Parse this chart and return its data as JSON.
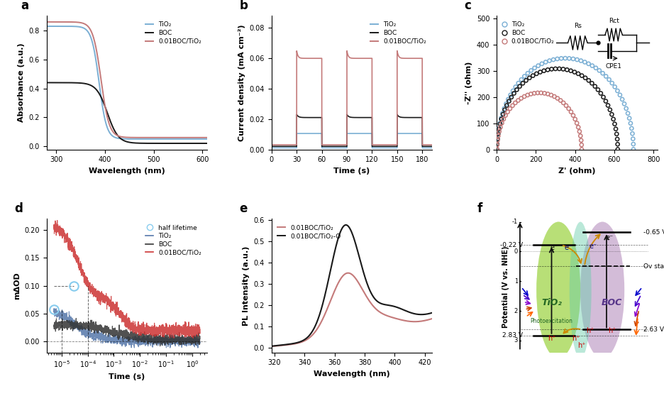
{
  "panel_a": {
    "label": "a",
    "xlabel": "Wavelength (nm)",
    "ylabel": "Absorbance (a.u.)",
    "xlim": [
      280,
      610
    ],
    "xticks": [
      300,
      400,
      500,
      600
    ],
    "colors": {
      "TiO2": "#7bafd4",
      "BOC": "#1a1a1a",
      "comp": "#c47a7a"
    },
    "legend": [
      "TiO₂",
      "BOC",
      "0.01BOC/TiO₂"
    ]
  },
  "panel_b": {
    "label": "b",
    "xlabel": "Time (s)",
    "ylabel": "Current density (mA cm⁻²)",
    "xlim": [
      0,
      192
    ],
    "ylim": [
      0,
      0.088
    ],
    "yticks": [
      0.0,
      0.02,
      0.04,
      0.06,
      0.08
    ],
    "xticks": [
      0,
      30,
      60,
      90,
      120,
      150,
      180
    ],
    "colors": {
      "TiO2": "#7bafd4",
      "BOC": "#1a1a1a",
      "comp": "#c47a7a"
    },
    "legend": [
      "TiO₂",
      "BOC",
      "0.01BOC/TiO₂"
    ]
  },
  "panel_c": {
    "label": "c",
    "xlabel": "Z' (ohm)",
    "ylabel": "-Z'' (ohm)",
    "xlim": [
      0,
      820
    ],
    "ylim": [
      0,
      510
    ],
    "xticks": [
      0,
      200,
      400,
      600,
      800
    ],
    "yticks": [
      0,
      100,
      200,
      300,
      400,
      500
    ],
    "colors": {
      "TiO2": "#7bafd4",
      "BOC": "#1a1a1a",
      "comp": "#c47a7a"
    },
    "legend": [
      "TiO₂",
      "BOC",
      "0.01BOC/TiO₂"
    ]
  },
  "panel_d": {
    "label": "d",
    "xlabel": "Time (s)",
    "ylabel": "mΔOD",
    "ylim": [
      -0.02,
      0.22
    ],
    "yticks": [
      0.0,
      0.05,
      0.1,
      0.15,
      0.2
    ],
    "colors": {
      "TiO2": "#5577aa",
      "BOC": "#333333",
      "comp": "#cc3333"
    },
    "legend": [
      "half lifetime",
      "TiO₂",
      "BOC",
      "0.01BOC/TiO₂"
    ]
  },
  "panel_e": {
    "label": "e",
    "xlabel": "Wavelength (nm)",
    "ylabel": "PL Intensity (a.u.)",
    "xlim": [
      318,
      425
    ],
    "xticks": [
      320,
      340,
      360,
      380,
      400,
      420
    ],
    "colors": {
      "comp": "#c47a7a",
      "comp_o": "#1a1a1a"
    },
    "legend": [
      "0.01BOC/TiO₂",
      "0.01BOC/TiO₂-O"
    ]
  },
  "panel_f": {
    "label": "f",
    "ylabel": "Potential (V vs. NHE)"
  },
  "background_color": "#ffffff",
  "fig_width": 9.36,
  "fig_height": 5.58
}
